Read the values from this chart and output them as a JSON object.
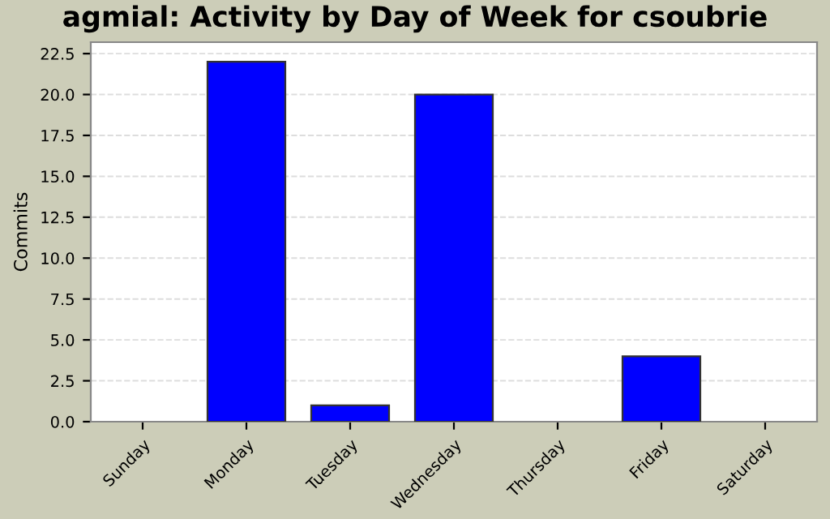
{
  "chart_data": {
    "type": "bar",
    "title": "agmial: Activity by Day of Week for csoubrie",
    "ylabel": "Commits",
    "categories": [
      "Sunday",
      "Monday",
      "Tuesday",
      "Wednesday",
      "Thursday",
      "Friday",
      "Saturday"
    ],
    "values": [
      0,
      22,
      1,
      20,
      0,
      4,
      0
    ],
    "color": "#0000ff",
    "ylim": [
      0,
      23.2
    ],
    "yticks": [
      {
        "value": 0,
        "label": "0.0"
      },
      {
        "value": 2.5,
        "label": "2.5"
      },
      {
        "value": 5,
        "label": "5.0"
      },
      {
        "value": 7.5,
        "label": "7.5"
      },
      {
        "value": 10,
        "label": "10.0"
      },
      {
        "value": 12.5,
        "label": "12.5"
      },
      {
        "value": 15,
        "label": "15.0"
      },
      {
        "value": 17.5,
        "label": "17.5"
      },
      {
        "value": 20,
        "label": "20.0"
      },
      {
        "value": 22.5,
        "label": "22.5"
      }
    ],
    "grid": "y",
    "legend": false
  }
}
